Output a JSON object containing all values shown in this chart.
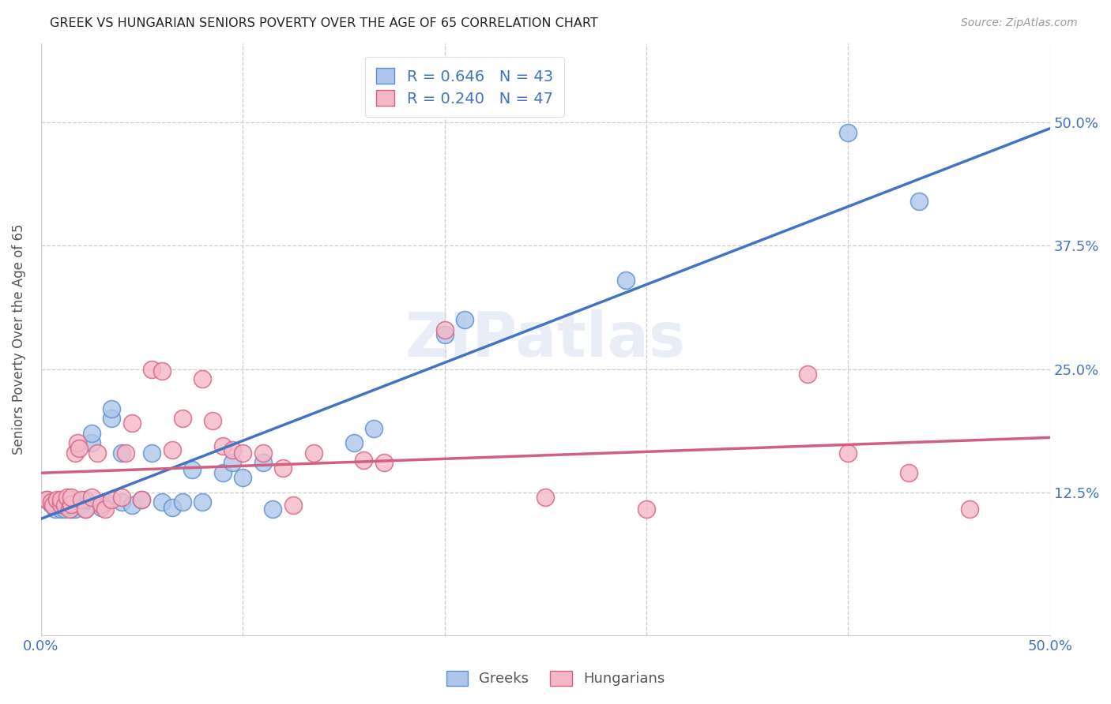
{
  "title": "GREEK VS HUNGARIAN SENIORS POVERTY OVER THE AGE OF 65 CORRELATION CHART",
  "source": "Source: ZipAtlas.com",
  "ylabel": "Seniors Poverty Over the Age of 65",
  "xlim": [
    0.0,
    0.5
  ],
  "ylim": [
    -0.02,
    0.58
  ],
  "ytick_positions": [
    0.125,
    0.25,
    0.375,
    0.5
  ],
  "ytick_labels": [
    "12.5%",
    "25.0%",
    "37.5%",
    "50.0%"
  ],
  "xtick_positions": [
    0.0,
    0.1,
    0.2,
    0.3,
    0.4,
    0.5
  ],
  "xtick_labels": [
    "0.0%",
    "",
    "",
    "",
    "",
    "50.0%"
  ],
  "greek_R": 0.646,
  "greek_N": 43,
  "hungarian_R": 0.24,
  "hungarian_N": 47,
  "greek_fill_color": "#aec6ea",
  "hungarian_fill_color": "#f5b8c8",
  "greek_edge_color": "#5b8fcc",
  "hungarian_edge_color": "#d96080",
  "greek_line_color": "#4472c4",
  "hungarian_line_color": "#d06080",
  "watermark": "ZIPatlas",
  "background_color": "#ffffff",
  "greek_points": [
    [
      0.003,
      0.118
    ],
    [
      0.005,
      0.113
    ],
    [
      0.007,
      0.108
    ],
    [
      0.008,
      0.113
    ],
    [
      0.01,
      0.108
    ],
    [
      0.01,
      0.115
    ],
    [
      0.012,
      0.108
    ],
    [
      0.013,
      0.113
    ],
    [
      0.015,
      0.108
    ],
    [
      0.015,
      0.113
    ],
    [
      0.017,
      0.108
    ],
    [
      0.018,
      0.113
    ],
    [
      0.02,
      0.112
    ],
    [
      0.022,
      0.108
    ],
    [
      0.022,
      0.118
    ],
    [
      0.025,
      0.175
    ],
    [
      0.025,
      0.185
    ],
    [
      0.03,
      0.11
    ],
    [
      0.032,
      0.115
    ],
    [
      0.035,
      0.2
    ],
    [
      0.035,
      0.21
    ],
    [
      0.04,
      0.115
    ],
    [
      0.04,
      0.165
    ],
    [
      0.045,
      0.112
    ],
    [
      0.05,
      0.118
    ],
    [
      0.055,
      0.165
    ],
    [
      0.06,
      0.115
    ],
    [
      0.065,
      0.11
    ],
    [
      0.07,
      0.115
    ],
    [
      0.075,
      0.148
    ],
    [
      0.08,
      0.115
    ],
    [
      0.09,
      0.145
    ],
    [
      0.095,
      0.155
    ],
    [
      0.1,
      0.14
    ],
    [
      0.11,
      0.155
    ],
    [
      0.115,
      0.108
    ],
    [
      0.155,
      0.175
    ],
    [
      0.165,
      0.19
    ],
    [
      0.2,
      0.285
    ],
    [
      0.21,
      0.3
    ],
    [
      0.29,
      0.34
    ],
    [
      0.4,
      0.49
    ],
    [
      0.435,
      0.42
    ]
  ],
  "hungarian_points": [
    [
      0.003,
      0.118
    ],
    [
      0.005,
      0.115
    ],
    [
      0.006,
      0.112
    ],
    [
      0.008,
      0.118
    ],
    [
      0.01,
      0.113
    ],
    [
      0.01,
      0.118
    ],
    [
      0.012,
      0.112
    ],
    [
      0.013,
      0.12
    ],
    [
      0.014,
      0.108
    ],
    [
      0.015,
      0.113
    ],
    [
      0.015,
      0.12
    ],
    [
      0.017,
      0.165
    ],
    [
      0.018,
      0.175
    ],
    [
      0.019,
      0.17
    ],
    [
      0.02,
      0.118
    ],
    [
      0.022,
      0.108
    ],
    [
      0.025,
      0.12
    ],
    [
      0.028,
      0.165
    ],
    [
      0.03,
      0.113
    ],
    [
      0.032,
      0.108
    ],
    [
      0.035,
      0.118
    ],
    [
      0.04,
      0.12
    ],
    [
      0.042,
      0.165
    ],
    [
      0.045,
      0.195
    ],
    [
      0.05,
      0.118
    ],
    [
      0.055,
      0.25
    ],
    [
      0.06,
      0.248
    ],
    [
      0.065,
      0.168
    ],
    [
      0.07,
      0.2
    ],
    [
      0.08,
      0.24
    ],
    [
      0.085,
      0.198
    ],
    [
      0.09,
      0.172
    ],
    [
      0.095,
      0.168
    ],
    [
      0.1,
      0.165
    ],
    [
      0.11,
      0.165
    ],
    [
      0.12,
      0.15
    ],
    [
      0.125,
      0.112
    ],
    [
      0.135,
      0.165
    ],
    [
      0.16,
      0.158
    ],
    [
      0.17,
      0.155
    ],
    [
      0.2,
      0.29
    ],
    [
      0.25,
      0.12
    ],
    [
      0.3,
      0.108
    ],
    [
      0.38,
      0.245
    ],
    [
      0.4,
      0.165
    ],
    [
      0.43,
      0.145
    ],
    [
      0.46,
      0.108
    ]
  ]
}
